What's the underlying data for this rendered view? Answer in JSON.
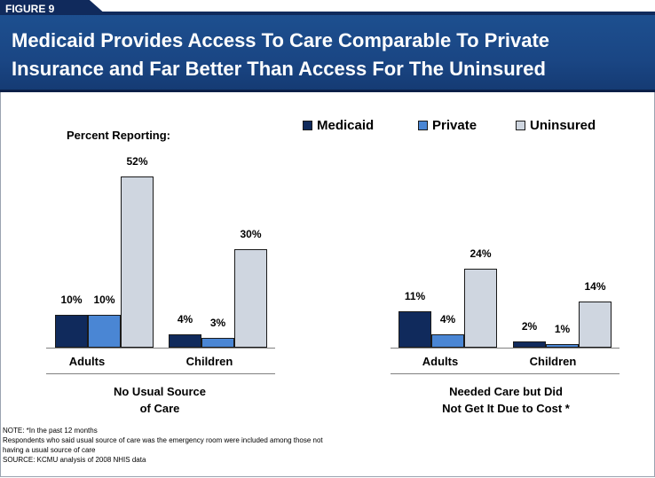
{
  "figure_label": "FIGURE 9",
  "title_line1": "Medicaid Provides Access To Care Comparable To Private",
  "title_line2": "Insurance and Far Better Than Access For The Uninsured",
  "percent_label": "Percent Reporting:",
  "colors": {
    "medicaid": "#102a5c",
    "private": "#4a86d4",
    "uninsured": "#cfd6e0",
    "header": "#1a4684"
  },
  "chart_data": {
    "type": "bar",
    "ylabel": "Percent Reporting:",
    "ylim": [
      0,
      52
    ],
    "legend_position": "top-right",
    "series": [
      {
        "name": "Medicaid",
        "values": [
          10,
          4,
          11,
          2
        ]
      },
      {
        "name": "Private",
        "values": [
          10,
          3,
          4,
          1
        ]
      },
      {
        "name": "Uninsured",
        "values": [
          52,
          30,
          24,
          14
        ]
      }
    ],
    "categories": [
      "Adults",
      "Children",
      "Adults",
      "Children"
    ],
    "groups": [
      {
        "label_line1": "No Usual Source",
        "label_line2": "of Care",
        "categories": [
          "Adults",
          "Children"
        ]
      },
      {
        "label_line1": "Needed Care but Did",
        "label_line2": "Not Get It Due to Cost *",
        "categories": [
          "Adults",
          "Children"
        ]
      }
    ],
    "data_labels": [
      [
        "10%",
        "4%",
        "11%",
        "2%"
      ],
      [
        "10%",
        "3%",
        "4%",
        "1%"
      ],
      [
        "52%",
        "30%",
        "24%",
        "14%"
      ]
    ]
  },
  "notes": {
    "line1": "NOTE: *In the past 12 months",
    "line2": "Respondents who said usual source of care was the emergency room were  included among those not",
    "line3": "having a usual source of care",
    "line4": "SOURCE: KCMU analysis of 2008 NHIS data"
  }
}
